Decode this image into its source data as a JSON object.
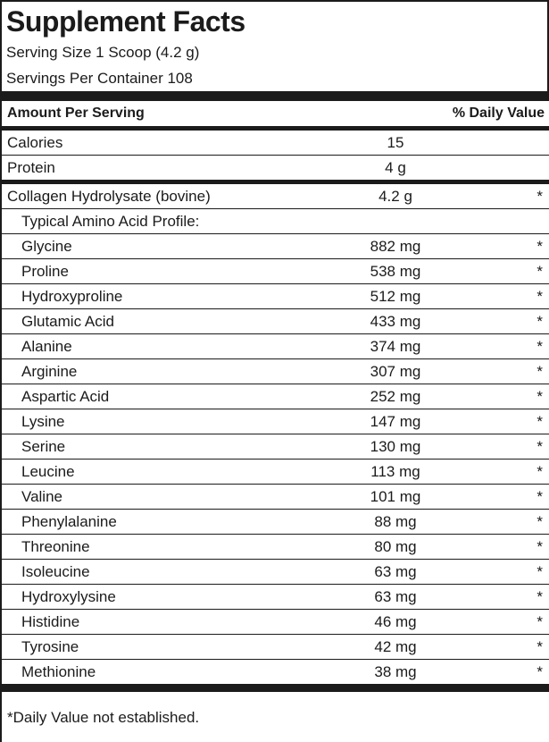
{
  "title": "Supplement Facts",
  "serving_info": {
    "serving_size": "Serving Size 1 Scoop (4.2 g)",
    "servings_per_container": "Servings Per Container 108"
  },
  "table": {
    "header": {
      "amount_col": "Amount Per Serving",
      "dv_col": "% Daily Value"
    },
    "rows": [
      {
        "name": "Calories",
        "amount": "15",
        "dv": "",
        "indent": false,
        "sep": "none"
      },
      {
        "name": "Protein",
        "amount": "4 g",
        "dv": "",
        "indent": false,
        "sep": "hair"
      },
      {
        "name": "Collagen Hydrolysate (bovine)",
        "amount": "4.2 g",
        "dv": "*",
        "indent": false,
        "sep": "thick"
      },
      {
        "name": "Typical Amino Acid Profile:",
        "amount": "",
        "dv": "",
        "indent": true,
        "sep": "hair"
      },
      {
        "name": "Glycine",
        "amount": "882 mg",
        "dv": "*",
        "indent": true,
        "sep": "hair"
      },
      {
        "name": "Proline",
        "amount": "538 mg",
        "dv": "*",
        "indent": true,
        "sep": "hair"
      },
      {
        "name": "Hydroxyproline",
        "amount": "512 mg",
        "dv": "*",
        "indent": true,
        "sep": "hair"
      },
      {
        "name": "Glutamic Acid",
        "amount": "433 mg",
        "dv": "*",
        "indent": true,
        "sep": "hair"
      },
      {
        "name": "Alanine",
        "amount": "374 mg",
        "dv": "*",
        "indent": true,
        "sep": "hair"
      },
      {
        "name": "Arginine",
        "amount": "307 mg",
        "dv": "*",
        "indent": true,
        "sep": "hair"
      },
      {
        "name": "Aspartic Acid",
        "amount": "252 mg",
        "dv": "*",
        "indent": true,
        "sep": "hair"
      },
      {
        "name": "Lysine",
        "amount": "147 mg",
        "dv": "*",
        "indent": true,
        "sep": "hair"
      },
      {
        "name": "Serine",
        "amount": "130 mg",
        "dv": "*",
        "indent": true,
        "sep": "hair"
      },
      {
        "name": "Leucine",
        "amount": "113 mg",
        "dv": "*",
        "indent": true,
        "sep": "hair"
      },
      {
        "name": "Valine",
        "amount": "101 mg",
        "dv": "*",
        "indent": true,
        "sep": "hair"
      },
      {
        "name": "Phenylalanine",
        "amount": "88 mg",
        "dv": "*",
        "indent": true,
        "sep": "hair"
      },
      {
        "name": "Threonine",
        "amount": "80 mg",
        "dv": "*",
        "indent": true,
        "sep": "hair"
      },
      {
        "name": "Isoleucine",
        "amount": "63 mg",
        "dv": "*",
        "indent": true,
        "sep": "hair"
      },
      {
        "name": "Hydroxylysine",
        "amount": "63 mg",
        "dv": "*",
        "indent": true,
        "sep": "hair"
      },
      {
        "name": "Histidine",
        "amount": "46 mg",
        "dv": "*",
        "indent": true,
        "sep": "hair"
      },
      {
        "name": "Tyrosine",
        "amount": "42 mg",
        "dv": "*",
        "indent": true,
        "sep": "hair"
      },
      {
        "name": "Methionine",
        "amount": "38 mg",
        "dv": "*",
        "indent": true,
        "sep": "hair"
      }
    ]
  },
  "footnote": "*Daily Value not established.",
  "colors": {
    "ink": "#1b1b1b",
    "background": "#ffffff"
  }
}
